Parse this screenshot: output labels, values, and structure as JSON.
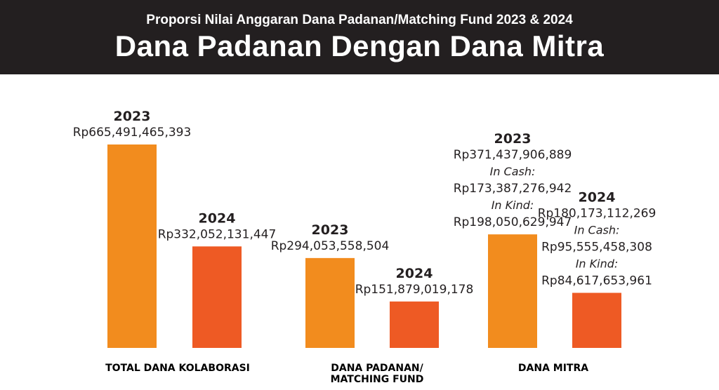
{
  "header": {
    "subtitle": "Proporsi Nilai Anggaran Dana Padanan/Matching Fund 2023 & 2024",
    "title": "Dana Padanan Dengan Dana Mitra"
  },
  "chart_data": {
    "type": "bar",
    "title": "Dana Padanan Dengan Dana Mitra",
    "subtitle": "Proporsi Nilai Anggaran Dana Padanan/Matching Fund 2023 & 2024",
    "categories": [
      "TOTAL DANA KOLABORASI",
      "DANA PADANAN/ MATCHING FUND",
      "DANA MITRA"
    ],
    "category_lines": [
      [
        "TOTAL DANA KOLABORASI"
      ],
      [
        "DANA PADANAN/",
        "MATCHING FUND"
      ],
      [
        "DANA MITRA"
      ]
    ],
    "series": [
      {
        "name": "2023",
        "color": "#f28c1e",
        "values": [
          665491465393,
          294053558504,
          371437906889
        ]
      },
      {
        "name": "2024",
        "color": "#ee5a24",
        "values": [
          332052131447,
          151879019178,
          180173112269
        ]
      }
    ],
    "labels": [
      [
        {
          "year": "2023",
          "lines": [
            {
              "t": "Rp665,491,465,393"
            }
          ]
        },
        {
          "year": "2024",
          "lines": [
            {
              "t": "Rp332,052,131,447"
            }
          ]
        }
      ],
      [
        {
          "year": "2023",
          "lines": [
            {
              "t": "Rp294,053,558,504"
            }
          ]
        },
        {
          "year": "2024",
          "lines": [
            {
              "t": "Rp151,879,019,178"
            }
          ]
        }
      ],
      [
        {
          "year": "2023",
          "lines": [
            {
              "t": "Rp371,437,906,889"
            },
            {
              "t": "In Cash:",
              "italic": true
            },
            {
              "t": "Rp173,387,276,942"
            },
            {
              "t": "In Kind:",
              "italic": true
            },
            {
              "t": "Rp198,050,629,947"
            }
          ]
        },
        {
          "year": "2024",
          "lines": [
            {
              "t": "Rp180,173,112,269"
            },
            {
              "t": "In Cash:",
              "italic": true
            },
            {
              "t": "Rp95,555,458,308"
            },
            {
              "t": "In Kind:",
              "italic": true
            },
            {
              "t": "Rp84,617,653,961"
            }
          ]
        }
      ]
    ],
    "breakdown": {
      "DANA MITRA": {
        "2023": {
          "in_cash": 173387276942,
          "in_kind": 198050629947
        },
        "2024": {
          "in_cash": 95555458308,
          "in_kind": 84617653961
        }
      }
    },
    "legend": "none",
    "grid": false,
    "axes_visible": false
  }
}
